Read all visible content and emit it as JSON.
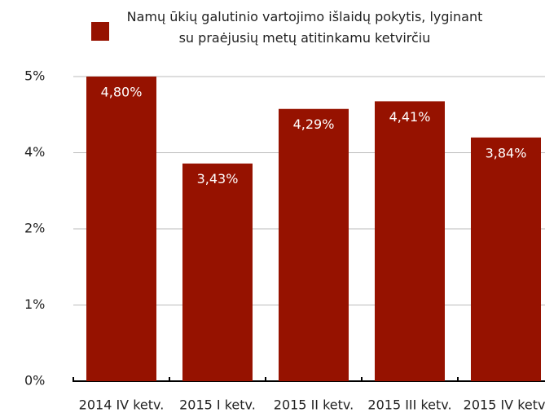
{
  "chart_data": {
    "type": "bar",
    "categories": [
      "2014 IV ketv.",
      "2015 I ketv.",
      "2015 II ketv.",
      "2015 III ketv.",
      "2015 IV ketv."
    ],
    "series": [
      {
        "name": "Namų ūkių galutinio vartojimo išlaidų pokytis, lyginant su praėjusių metų atitinkamu ketvirčiu",
        "color": "#961200",
        "values": [
          4.8,
          3.43,
          4.29,
          4.41,
          3.84
        ],
        "value_labels": [
          "4,80%",
          "3,43%",
          "4,29%",
          "4,41%",
          "3,84%"
        ]
      }
    ],
    "ylim": [
      0,
      4.8
    ],
    "yticks": [
      {
        "value": 0,
        "label": "0%"
      },
      {
        "value": 1.2,
        "label": "1%"
      },
      {
        "value": 2.4,
        "label": "2%"
      },
      {
        "value": 3.6,
        "label": "4%"
      },
      {
        "value": 4.8,
        "label": "5%"
      }
    ],
    "grid": true,
    "legend": "top"
  }
}
